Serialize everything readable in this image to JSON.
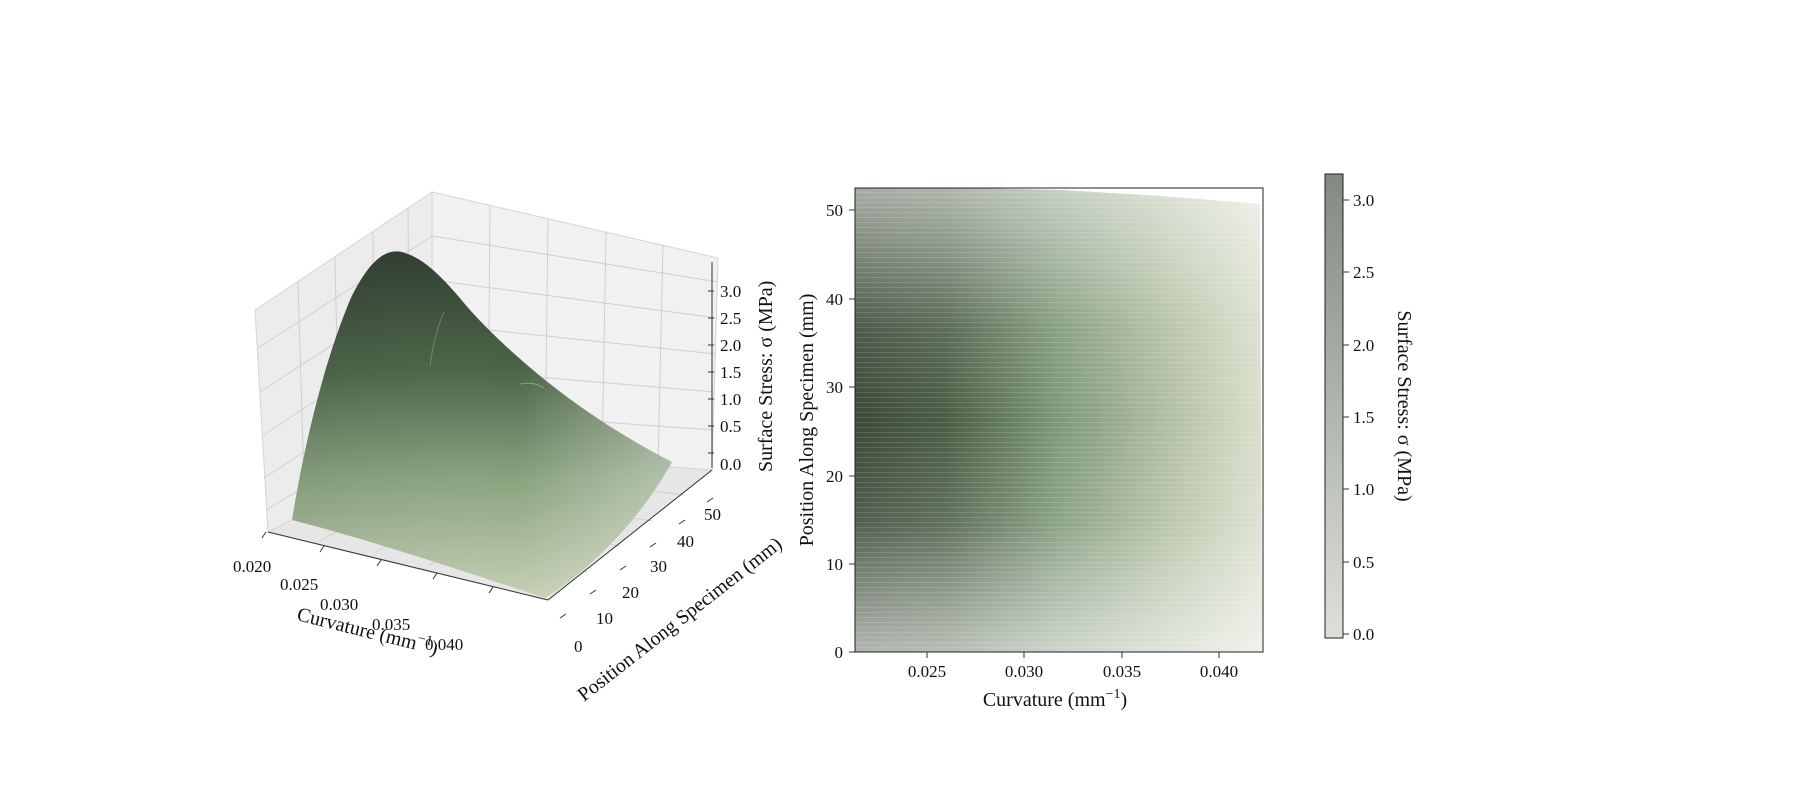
{
  "chart_data": [
    {
      "type": "surface",
      "xlabel": "Curvature (mm",
      "xlabel_sup": "−1",
      "xlabel_end": ")",
      "ylabel": "Position Along Specimen (mm)",
      "zlabel": "Surface Stress: σ (MPa)",
      "xticks": [
        "0.020",
        "0.025",
        "0.030",
        "0.035",
        "0.040"
      ],
      "yticks": [
        "0",
        "10",
        "20",
        "30",
        "40",
        "50"
      ],
      "zticks": [
        "0.0",
        "0.5",
        "1.0",
        "1.5",
        "2.0",
        "2.5",
        "3.0"
      ],
      "xlim": [
        0.02,
        0.042
      ],
      "ylim": [
        0,
        52
      ],
      "zlim": [
        0,
        3.2
      ],
      "peak": {
        "curvature": 0.023,
        "position": 28,
        "stress": 3.2
      },
      "grid": true
    },
    {
      "type": "heatmap",
      "xlabel": "Curvature (mm",
      "xlabel_sup": "−1",
      "xlabel_end": ")",
      "ylabel": "Position Along Specimen (mm)",
      "xticks": [
        "0.025",
        "0.030",
        "0.035",
        "0.040"
      ],
      "yticks": [
        "0",
        "10",
        "20",
        "30",
        "40",
        "50"
      ],
      "xlim": [
        0.0213,
        0.0422
      ],
      "ylim": [
        0,
        52.5
      ],
      "colorbar": {
        "label": "Surface Stress: σ (MPa)",
        "ticks": [
          "0.0",
          "0.5",
          "1.0",
          "1.5",
          "2.0",
          "2.5",
          "3.0"
        ],
        "range": [
          0,
          3.2
        ]
      }
    }
  ],
  "colors": {
    "low": "#dfe3d4",
    "mid": "#8aa47f",
    "high": "#2d3a2c",
    "colorbar_low": "#dde0d6",
    "colorbar_high": "#838a80"
  }
}
